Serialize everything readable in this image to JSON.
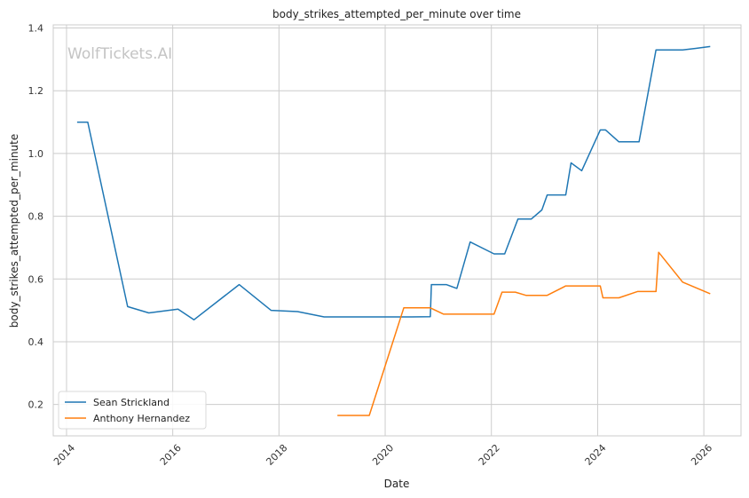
{
  "chart_data": {
    "type": "line",
    "title": "body_strikes_attempted_per_minute over time",
    "xlabel": "Date",
    "ylabel": "body_strikes_attempted_per_minute",
    "watermark": "WolfTickets.AI",
    "xlim": [
      2013.75,
      2026.7
    ],
    "ylim": [
      0.1,
      1.41
    ],
    "x_ticks": [
      2014,
      2016,
      2018,
      2020,
      2022,
      2024,
      2026
    ],
    "y_ticks": [
      0.2,
      0.4,
      0.6,
      0.8,
      1.0,
      1.2,
      1.4
    ],
    "y_tick_labels": [
      "0.2",
      "0.4",
      "0.6",
      "0.8",
      "1.0",
      "1.2",
      "1.4"
    ],
    "grid": true,
    "legend_position": "lower-left",
    "series": [
      {
        "name": "Sean Strickland",
        "color": "#1f77b4",
        "x": [
          2014.2,
          2014.4,
          2015.15,
          2015.55,
          2016.1,
          2016.4,
          2017.25,
          2017.85,
          2018.35,
          2018.85,
          2019.4,
          2020.0,
          2020.5,
          2020.85,
          2020.87,
          2021.15,
          2021.35,
          2021.6,
          2022.05,
          2022.25,
          2022.5,
          2022.75,
          2022.95,
          2023.05,
          2023.4,
          2023.5,
          2023.7,
          2024.05,
          2024.15,
          2024.4,
          2024.6,
          2024.78,
          2025.1,
          2025.3,
          2025.6,
          2025.85,
          2026.12
        ],
        "y": [
          1.1,
          1.1,
          0.512,
          0.492,
          0.504,
          0.47,
          0.582,
          0.5,
          0.496,
          0.479,
          0.479,
          0.479,
          0.479,
          0.48,
          0.582,
          0.582,
          0.57,
          0.718,
          0.68,
          0.68,
          0.791,
          0.791,
          0.82,
          0.868,
          0.868,
          0.97,
          0.945,
          1.075,
          1.075,
          1.037,
          1.037,
          1.037,
          1.33,
          1.33,
          1.33,
          1.335,
          1.341
        ]
      },
      {
        "name": "Anthony Hernandez",
        "color": "#ff7f0e",
        "x": [
          2019.1,
          2019.7,
          2020.35,
          2020.85,
          2021.1,
          2021.5,
          2022.05,
          2022.2,
          2022.45,
          2022.65,
          2023.05,
          2023.4,
          2023.6,
          2024.05,
          2024.1,
          2024.4,
          2024.75,
          2025.1,
          2025.15,
          2025.6,
          2026.12
        ],
        "y": [
          0.165,
          0.165,
          0.508,
          0.508,
          0.488,
          0.488,
          0.488,
          0.558,
          0.558,
          0.548,
          0.548,
          0.578,
          0.578,
          0.578,
          0.54,
          0.54,
          0.56,
          0.56,
          0.685,
          0.59,
          0.553
        ]
      }
    ]
  }
}
